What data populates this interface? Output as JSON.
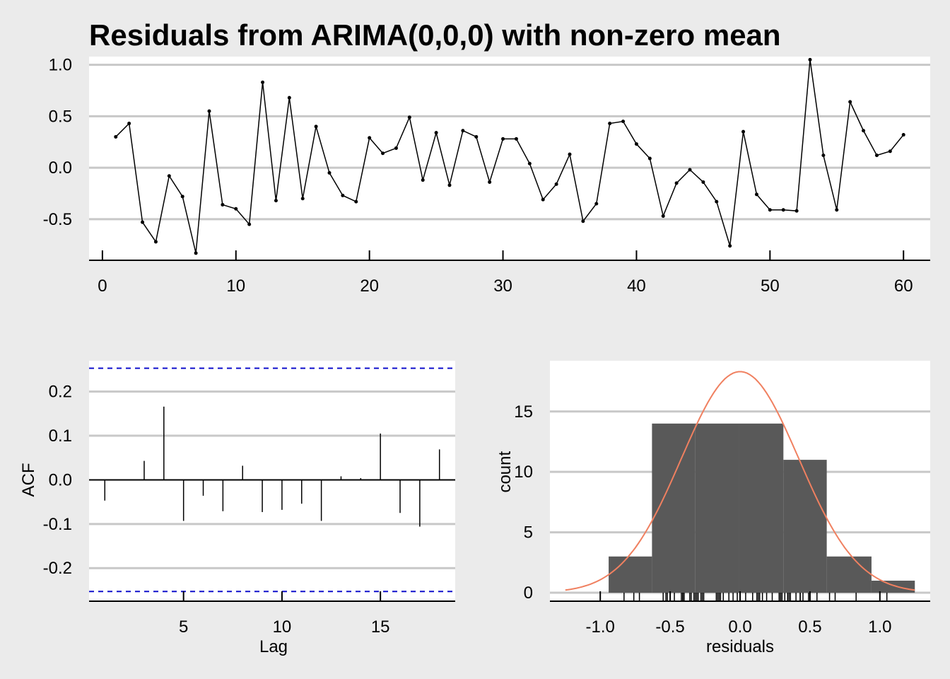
{
  "chart_data": [
    {
      "type": "line",
      "title": "Residuals from ARIMA(0,0,0) with non-zero mean",
      "xlabel": "",
      "ylabel": "",
      "xlim": [
        -1,
        62
      ],
      "ylim": [
        -0.9,
        1.08
      ],
      "grid": true,
      "x_ticks": [
        "0",
        "10",
        "20",
        "30",
        "40",
        "50",
        "60"
      ],
      "y_ticks": [
        "1.0",
        "0.5",
        "0.0",
        "-0.5"
      ],
      "x": [
        1,
        2,
        3,
        4,
        5,
        6,
        7,
        8,
        9,
        10,
        11,
        12,
        13,
        14,
        15,
        16,
        17,
        18,
        19,
        20,
        21,
        22,
        23,
        24,
        25,
        26,
        27,
        28,
        29,
        30,
        31,
        32,
        33,
        34,
        35,
        36,
        37,
        38,
        39,
        40,
        41,
        42,
        43,
        44,
        45,
        46,
        47,
        48,
        49,
        50,
        51,
        52,
        53,
        54,
        55,
        56,
        57,
        58,
        59,
        60
      ],
      "values": [
        0.3,
        0.43,
        -0.53,
        -0.72,
        -0.08,
        -0.28,
        -0.83,
        0.55,
        -0.36,
        -0.4,
        -0.55,
        0.83,
        -0.32,
        0.68,
        -0.3,
        0.4,
        -0.05,
        -0.27,
        -0.33,
        0.29,
        0.14,
        0.19,
        0.49,
        -0.12,
        0.34,
        -0.17,
        0.36,
        0.3,
        -0.14,
        0.28,
        0.28,
        0.04,
        -0.31,
        -0.16,
        0.13,
        -0.52,
        -0.35,
        0.43,
        0.45,
        0.23,
        0.09,
        -0.47,
        -0.15,
        -0.02,
        -0.14,
        -0.33,
        -0.76,
        0.35,
        -0.26,
        -0.41,
        -0.41,
        -0.42,
        1.05,
        0.12,
        -0.41,
        0.64,
        0.36,
        0.12,
        0.16,
        0.32
      ]
    },
    {
      "type": "bar",
      "title": "",
      "xlabel": "Lag",
      "ylabel": "ACF",
      "xlim": [
        0.2,
        18.8
      ],
      "ylim": [
        -0.275,
        0.27
      ],
      "confidence_bounds": [
        -0.253,
        0.253
      ],
      "x_ticks": [
        "5",
        "10",
        "15"
      ],
      "y_ticks": [
        "0.2",
        "0.1",
        "0.0",
        "-0.1",
        "-0.2"
      ],
      "categories": [
        1,
        2,
        3,
        4,
        5,
        6,
        7,
        8,
        9,
        10,
        11,
        12,
        13,
        14,
        15,
        16,
        17,
        18
      ],
      "values": [
        -0.047,
        0.0,
        0.043,
        0.166,
        -0.093,
        -0.036,
        -0.071,
        0.032,
        -0.073,
        -0.068,
        -0.054,
        -0.093,
        0.008,
        0.004,
        0.105,
        -0.075,
        -0.106,
        0.069
      ]
    },
    {
      "type": "bar",
      "title": "",
      "xlabel": "residuals",
      "ylabel": "count",
      "xlim": [
        -1.36,
        1.36
      ],
      "ylim": [
        -0.7,
        19.2
      ],
      "x_ticks": [
        "-1.0",
        "-0.5",
        "0.0",
        "0.5",
        "1.0"
      ],
      "y_ticks": [
        "15",
        "10",
        "5",
        "0"
      ],
      "bins": [
        {
          "from": -0.94,
          "to": -0.63,
          "count": 3
        },
        {
          "from": -0.63,
          "to": -0.32,
          "count": 14
        },
        {
          "from": -0.32,
          "to": -0.01,
          "count": 14
        },
        {
          "from": -0.01,
          "to": 0.31,
          "count": 14
        },
        {
          "from": 0.31,
          "to": 0.62,
          "count": 11
        },
        {
          "from": 0.62,
          "to": 0.94,
          "count": 3
        },
        {
          "from": 0.94,
          "to": 1.25,
          "count": 1
        }
      ],
      "normal_curve": {
        "mean": 0.0,
        "sd": 0.42,
        "peak": 18.3
      },
      "colors": {
        "bars": "#595959",
        "curve": "#f08060"
      }
    }
  ]
}
